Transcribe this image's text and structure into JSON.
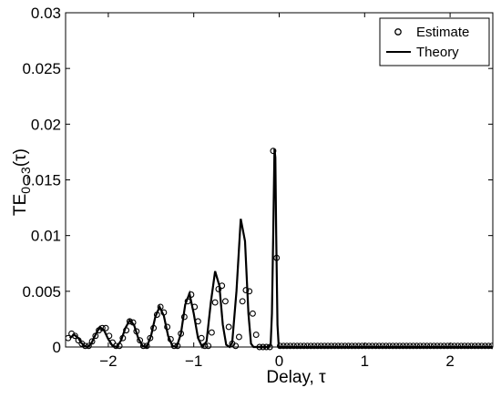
{
  "chart_data": {
    "type": "line",
    "xlabel": "Delay, τ",
    "ylabel": "TE",
    "ylabel_sub": "0→3",
    "ylabel_tail": "(τ)",
    "xlim": [
      -2.5,
      2.5
    ],
    "ylim": [
      0,
      0.03
    ],
    "xticks": [
      -2,
      -1,
      0,
      1,
      2
    ],
    "xtick_labels": [
      "−2",
      "−1",
      "0",
      "1",
      "2"
    ],
    "yticks": [
      0,
      0.005,
      0.01,
      0.015,
      0.02,
      0.025,
      0.03
    ],
    "ytick_labels": [
      "0",
      "0.005",
      "0.01",
      "0.015",
      "0.02",
      "0.025",
      "0.03"
    ],
    "legend": {
      "position": "top-right",
      "entries": [
        {
          "label": "Estimate",
          "marker": "circle"
        },
        {
          "label": "Theory",
          "marker": "line"
        }
      ]
    },
    "series": [
      {
        "name": "Theory",
        "style": "line",
        "color": "#000000",
        "x": [
          -2.45,
          -2.4,
          -2.35,
          -2.32,
          -2.28,
          -2.24,
          -2.2,
          -2.15,
          -2.1,
          -2.05,
          -2.0,
          -1.95,
          -1.9,
          -1.85,
          -1.8,
          -1.75,
          -1.7,
          -1.65,
          -1.6,
          -1.55,
          -1.5,
          -1.45,
          -1.4,
          -1.35,
          -1.3,
          -1.25,
          -1.2,
          -1.15,
          -1.1,
          -1.05,
          -1.0,
          -0.95,
          -0.9,
          -0.85,
          -0.8,
          -0.75,
          -0.7,
          -0.66,
          -0.62,
          -0.58,
          -0.55,
          -0.5,
          -0.45,
          -0.4,
          -0.36,
          -0.33,
          -0.3,
          -0.27,
          -0.23,
          -0.2,
          -0.17,
          -0.15,
          -0.12,
          -0.1,
          -0.085,
          -0.07,
          -0.055,
          -0.045,
          -0.035,
          -0.02,
          -0.005,
          0.0,
          0.05,
          0.5,
          1.0,
          1.5,
          2.0,
          2.5
        ],
        "y": [
          0.0008,
          0.0011,
          0.0008,
          0.0004,
          0.0001,
          0.0,
          0.0003,
          0.0011,
          0.0018,
          0.0015,
          0.0007,
          0.0001,
          0.0,
          0.0006,
          0.0017,
          0.0024,
          0.002,
          0.0008,
          0.0001,
          0.0,
          0.001,
          0.0027,
          0.0036,
          0.0028,
          0.001,
          0.0001,
          0.0,
          0.0012,
          0.0038,
          0.0048,
          0.003,
          0.0008,
          0.0,
          0.0005,
          0.004,
          0.0068,
          0.0055,
          0.002,
          0.0002,
          0.0,
          0.0004,
          0.005,
          0.0115,
          0.0095,
          0.003,
          0.0003,
          0.0,
          0.0,
          0.0,
          0.0,
          0.0,
          0.0,
          0.0,
          0.0002,
          0.003,
          0.01,
          0.0178,
          0.017,
          0.01,
          0.002,
          0.0,
          0.0,
          0.0,
          0.0,
          0.0,
          0.0,
          0.0,
          0.0
        ]
      },
      {
        "name": "Estimate",
        "style": "marker",
        "marker": "circle",
        "color": "#000000",
        "x": [
          -2.47,
          -2.43,
          -2.39,
          -2.35,
          -2.31,
          -2.27,
          -2.23,
          -2.19,
          -2.15,
          -2.11,
          -2.07,
          -2.03,
          -1.99,
          -1.95,
          -1.91,
          -1.87,
          -1.83,
          -1.79,
          -1.75,
          -1.71,
          -1.67,
          -1.63,
          -1.59,
          -1.55,
          -1.51,
          -1.47,
          -1.43,
          -1.39,
          -1.35,
          -1.31,
          -1.27,
          -1.23,
          -1.19,
          -1.15,
          -1.11,
          -1.07,
          -1.03,
          -0.99,
          -0.95,
          -0.91,
          -0.87,
          -0.83,
          -0.79,
          -0.75,
          -0.71,
          -0.67,
          -0.63,
          -0.59,
          -0.55,
          -0.51,
          -0.47,
          -0.43,
          -0.39,
          -0.35,
          -0.31,
          -0.27,
          -0.23,
          -0.19,
          -0.15,
          -0.11,
          -0.07,
          -0.03,
          0.01,
          0.05,
          0.09,
          0.13,
          0.17,
          0.21,
          0.25,
          0.29,
          0.33,
          0.37,
          0.41,
          0.45,
          0.49,
          0.53,
          0.57,
          0.61,
          0.65,
          0.69,
          0.73,
          0.77,
          0.81,
          0.85,
          0.89,
          0.93,
          0.97,
          1.01,
          1.05,
          1.09,
          1.13,
          1.17,
          1.21,
          1.25,
          1.29,
          1.33,
          1.37,
          1.41,
          1.45,
          1.49,
          1.53,
          1.57,
          1.61,
          1.65,
          1.69,
          1.73,
          1.77,
          1.81,
          1.85,
          1.89,
          1.93,
          1.97,
          2.01,
          2.05,
          2.09,
          2.13,
          2.17,
          2.21,
          2.25,
          2.29,
          2.33,
          2.37,
          2.41,
          2.45,
          2.49
        ],
        "y": [
          0.0008,
          0.0012,
          0.001,
          0.0006,
          0.0003,
          0.0001,
          0.0001,
          0.0005,
          0.001,
          0.0015,
          0.0017,
          0.0017,
          0.001,
          0.0004,
          0.0001,
          0.0001,
          0.0008,
          0.0015,
          0.0023,
          0.0022,
          0.0014,
          0.0006,
          0.0001,
          0.0001,
          0.0008,
          0.0017,
          0.0029,
          0.0036,
          0.0031,
          0.0018,
          0.0007,
          0.0001,
          0.0001,
          0.0012,
          0.0027,
          0.0041,
          0.0047,
          0.0036,
          0.0023,
          0.0008,
          0.0001,
          0.0001,
          0.0013,
          0.004,
          0.0052,
          0.0055,
          0.0041,
          0.0018,
          0.0003,
          0.0001,
          0.0009,
          0.0041,
          0.0051,
          0.005,
          0.003,
          0.0011,
          0.0,
          0.0,
          0.0,
          0.0,
          0.0176,
          0.008,
          0.0001,
          0.0001,
          0.0001,
          0.0001,
          0.0001,
          0.0001,
          0.0001,
          0.0001,
          0.0001,
          0.0001,
          0.0001,
          0.0001,
          0.0001,
          0.0001,
          0.0001,
          0.0001,
          0.0001,
          0.0001,
          0.0001,
          0.0001,
          0.0001,
          0.0001,
          0.0001,
          0.0001,
          0.0001,
          0.0001,
          0.0001,
          0.0001,
          0.0001,
          0.0001,
          0.0001,
          0.0001,
          0.0001,
          0.0001,
          0.0001,
          0.0001,
          0.0001,
          0.0001,
          0.0001,
          0.0001,
          0.0001,
          0.0001,
          0.0001,
          0.0001,
          0.0001,
          0.0001,
          0.0001,
          0.0001,
          0.0001,
          0.0001,
          0.0001,
          0.0001,
          0.0001,
          0.0001,
          0.0001,
          0.0001,
          0.0001,
          0.0001,
          0.0001,
          0.0001,
          0.0001,
          0.0001,
          0.0001
        ]
      }
    ]
  }
}
